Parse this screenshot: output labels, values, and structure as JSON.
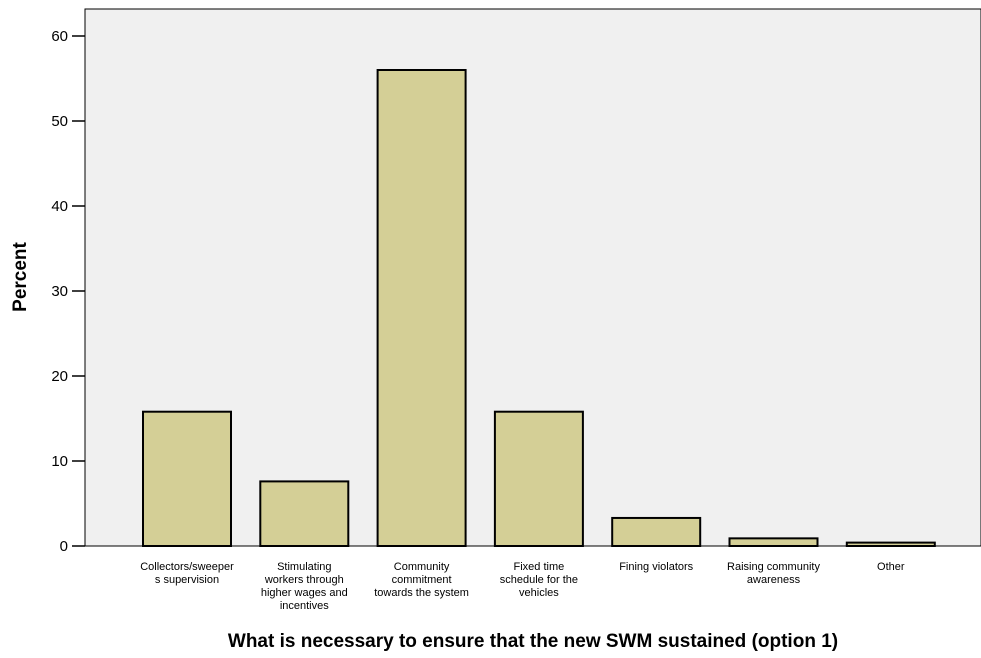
{
  "chart_data": {
    "type": "bar",
    "xlabel": "What is necessary to ensure that the new SWM sustained (option 1)",
    "ylabel": "Percent",
    "ylim": [
      0,
      64
    ],
    "yticks": [
      "0",
      "10",
      "20",
      "30",
      "40",
      "50",
      "60"
    ],
    "categories": [
      [
        "Collectors/sweeper",
        "s supervision"
      ],
      [
        "Stimulating",
        "workers through",
        "higher wages and",
        "incentives"
      ],
      [
        "Community",
        "commitment",
        "towards the system"
      ],
      [
        "Fixed time",
        "schedule for the",
        "vehicles"
      ],
      [
        "Fining violators"
      ],
      [
        "Raising community",
        "awareness"
      ],
      [
        "Other"
      ]
    ],
    "values": [
      15.8,
      7.6,
      56.0,
      15.8,
      3.3,
      0.9,
      0.4
    ],
    "colors": {
      "bar": "#d4cf96",
      "plot_bg": "#f0f0f0",
      "outline": "#000000"
    },
    "grid": false
  }
}
